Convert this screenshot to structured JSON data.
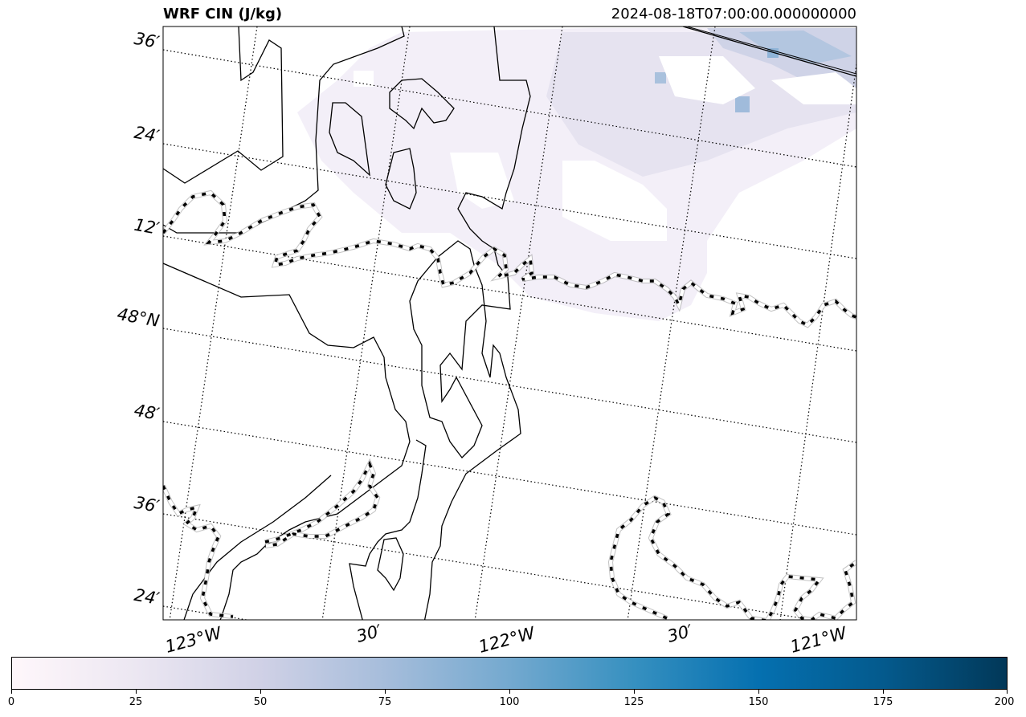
{
  "title": {
    "left": "WRF CIN (J/kg)",
    "right": "2024-08-18T07:00:00.000000000"
  },
  "map": {
    "lat_labels": [
      "36′",
      "24′",
      "12′",
      "48°N",
      "48′",
      "36′",
      "24′"
    ],
    "lon_labels": [
      "123°W",
      "30′",
      "122°W",
      "30′",
      "121°W"
    ],
    "coastline_color": "#000000",
    "boundary_style": "dashed black on white",
    "gridline_style": "dotted black"
  },
  "colorbar": {
    "colormap": "PuBu",
    "min": 0,
    "max": 200,
    "tick_labels": [
      "0",
      "25",
      "50",
      "75",
      "100",
      "125",
      "150",
      "175",
      "200"
    ],
    "colors": [
      "#fff7fb",
      "#ece7f2",
      "#d0d1e6",
      "#a6bddb",
      "#74a9cf",
      "#3690c0",
      "#0570b0",
      "#045a8d",
      "#023858"
    ]
  }
}
